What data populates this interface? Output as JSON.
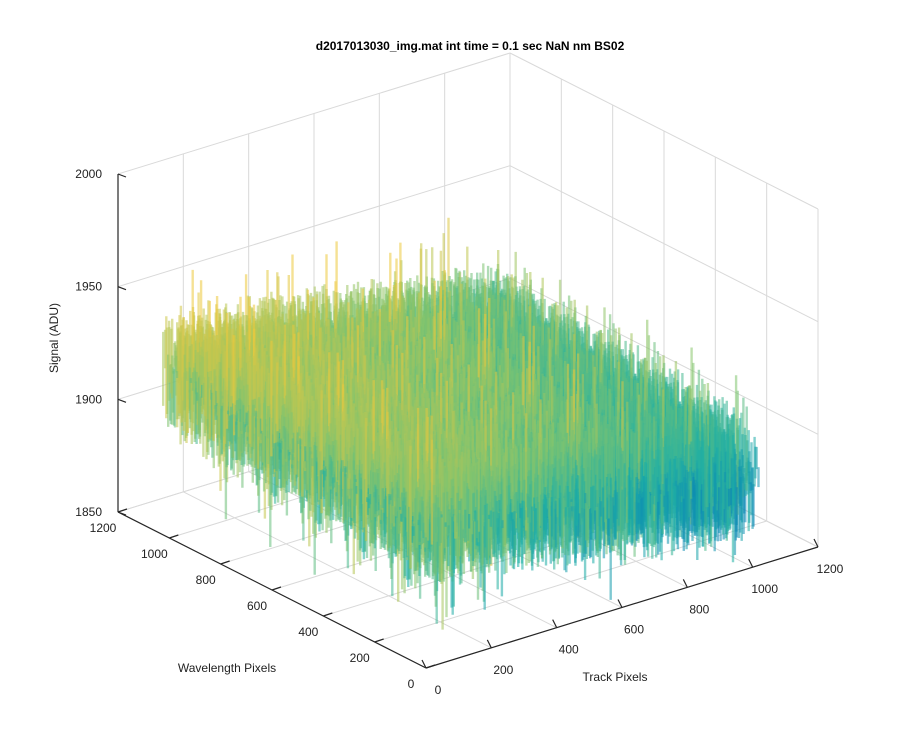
{
  "chart_data": {
    "type": "surface",
    "title": "d2017013030_img.mat int time = 0.1 sec  NaN nm BS02",
    "xlabel": "Track Pixels",
    "ylabel": "Wavelength Pixels",
    "zlabel": "Signal (ADU)",
    "xlim": [
      0,
      1200
    ],
    "ylim": [
      0,
      1200
    ],
    "zlim": [
      1850,
      2000
    ],
    "x_ticks": [
      "0",
      "200",
      "400",
      "600",
      "800",
      "1000",
      "1200"
    ],
    "y_ticks": [
      "0",
      "200",
      "400",
      "600",
      "800",
      "1000",
      "1200"
    ],
    "z_ticks": [
      "1850",
      "1900",
      "1950",
      "2000"
    ],
    "grid": true,
    "colormap": "parula",
    "data_extent": {
      "x": [
        0,
        1024
      ],
      "y": [
        0,
        1024
      ],
      "z_range_approx": [
        1860,
        1975
      ]
    },
    "trend": {
      "z_at_origin_corner": 1920,
      "z_at_wavelength_max_track_0": 1930,
      "z_at_track_max_wavelength_0": 1895,
      "z_at_track_max_wavelength_max": 1905,
      "noise_amplitude": 15
    },
    "colors": {
      "low": "#0072bd",
      "mid": "#1fb0a5",
      "high": "#e6c33a"
    }
  }
}
